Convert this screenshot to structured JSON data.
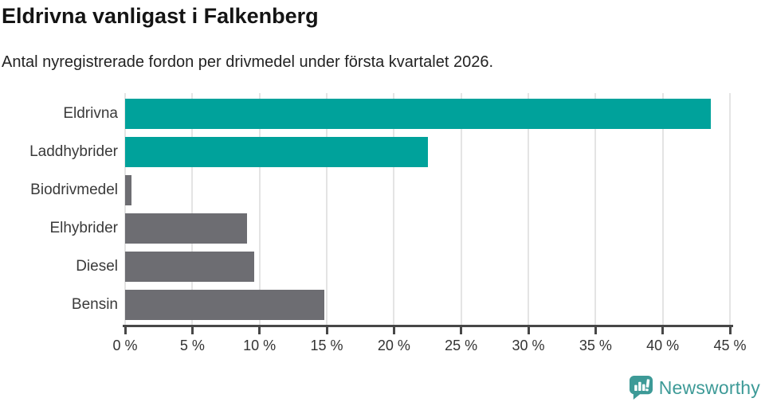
{
  "title": "Eldrivna vanligast i Falkenberg",
  "subtitle": "Antal nyregistrerade fordon per drivmedel under första kvartalet 2026.",
  "chart_data": {
    "type": "bar",
    "orientation": "horizontal",
    "title": "Eldrivna vanligast i Falkenberg",
    "subtitle": "Antal nyregistrerade fordon per drivmedel under första kvartalet 2026.",
    "categories": [
      "Eldrivna",
      "Laddhybrider",
      "Biodrivmedel",
      "Elhybrider",
      "Diesel",
      "Bensin"
    ],
    "values": [
      43.6,
      22.5,
      0.5,
      9.1,
      9.6,
      14.8
    ],
    "value_unit": "%",
    "xlim": [
      0,
      45
    ],
    "xticks": [
      0,
      5,
      10,
      15,
      20,
      25,
      30,
      35,
      40,
      45
    ],
    "xtick_suffix": " %",
    "grid": true,
    "legend": false,
    "bar_colors": [
      "#00a29b",
      "#00a29b",
      "#6d6d72",
      "#6d6d72",
      "#6d6d72",
      "#6d6d72"
    ]
  },
  "branding": {
    "logo_text": "Newsworthy",
    "logo_color": "#3d9a97"
  },
  "colors": {
    "highlight": "#00a29b",
    "neutral": "#6d6d72",
    "gridline": "#e4e4e4",
    "axis": "#474747",
    "text": "#333333"
  }
}
